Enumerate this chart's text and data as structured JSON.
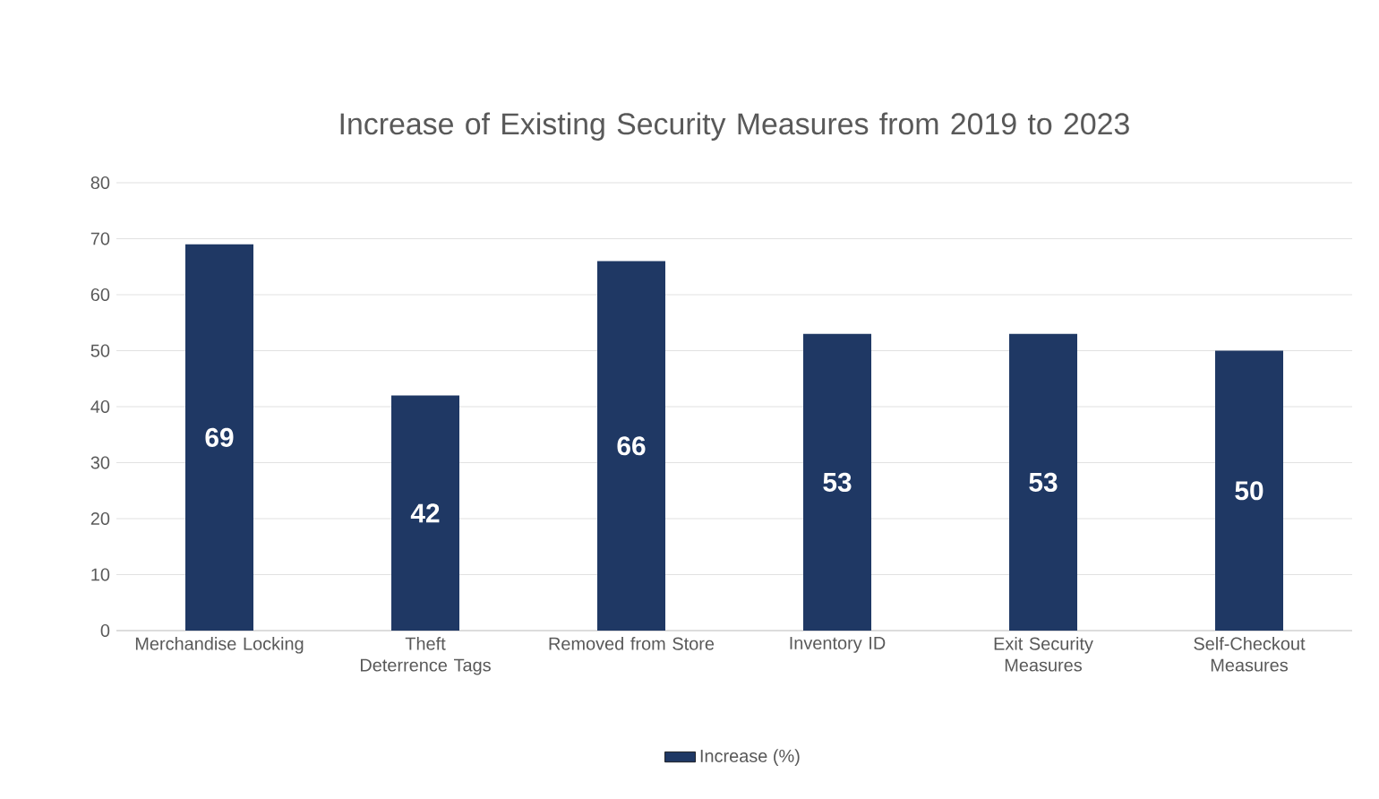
{
  "chart_data": {
    "type": "bar",
    "title": "Increase of Existing Security Measures from 2019 to 2023",
    "categories": [
      "Merchandise Locking",
      "Theft Deterrence Tags",
      "Removed from Store",
      "Inventory ID",
      "Exit Security Measures",
      "Self-Checkout Measures"
    ],
    "series": [
      {
        "name": "Increase (%)",
        "color": "#1f3864",
        "values": [
          69,
          42,
          66,
          53,
          53,
          50
        ]
      }
    ],
    "ylim": [
      0,
      80
    ],
    "yticks": [
      0,
      10,
      20,
      30,
      40,
      50,
      60,
      70,
      80
    ],
    "grid": "y",
    "legend": "bottom",
    "data_labels": true
  }
}
